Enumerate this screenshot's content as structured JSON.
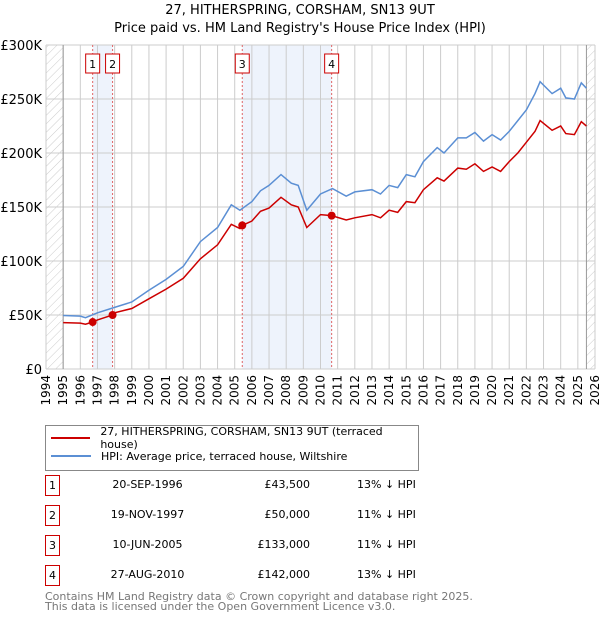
{
  "title": "27, HITHERSPRING, CORSHAM, SN13 9UT",
  "subtitle": "Price paid vs. HM Land Registry's House Price Index (HPI)",
  "legend": {
    "property": "27, HITHERSPRING, CORSHAM, SN13 9UT (terraced house)",
    "hpi": "HPI: Average price, terraced house, Wiltshire"
  },
  "sales": [
    {
      "n": "1",
      "date": "20-SEP-1996",
      "price": "£43,500",
      "hpi": "13% ↓ HPI"
    },
    {
      "n": "2",
      "date": "19-NOV-1997",
      "price": "£50,000",
      "hpi": "11% ↓ HPI"
    },
    {
      "n": "3",
      "date": "10-JUN-2005",
      "price": "£133,000",
      "hpi": "11% ↓ HPI"
    },
    {
      "n": "4",
      "date": "27-AUG-2010",
      "price": "£142,000",
      "hpi": "13% ↓ HPI"
    }
  ],
  "footer": [
    "Contains HM Land Registry data © Crown copyright and database right 2025.",
    "This data is licensed under the Open Government Licence v3.0."
  ],
  "chart_data": {
    "type": "line",
    "title": "27, HITHERSPRING, CORSHAM, SN13 9UT",
    "xlim": [
      1994,
      2026
    ],
    "ylim": [
      0,
      300000
    ],
    "yticks": [
      0,
      50000,
      100000,
      150000,
      200000,
      250000,
      300000
    ],
    "ytick_labels": [
      "£0",
      "£50K",
      "£100K",
      "£150K",
      "£200K",
      "£250K",
      "£300K"
    ],
    "xticks": [
      1994,
      1995,
      1996,
      1997,
      1998,
      1999,
      2000,
      2001,
      2002,
      2003,
      2004,
      2005,
      2006,
      2007,
      2008,
      2009,
      2010,
      2011,
      2012,
      2013,
      2014,
      2015,
      2016,
      2017,
      2018,
      2019,
      2020,
      2021,
      2022,
      2023,
      2024,
      2025,
      2026
    ],
    "colors": {
      "property": "#cc0000",
      "hpi": "#5b8fd4",
      "shade": "#eef3fc"
    },
    "series": [
      {
        "name": "HPI: Average price, terraced house, Wiltshire",
        "x": [
          1995,
          1996,
          1996.3,
          1997,
          1998,
          1999,
          2000,
          2001,
          2002,
          2003,
          2004,
          2004.8,
          2005.3,
          2006,
          2006.5,
          2007,
          2007.7,
          2008.3,
          2008.7,
          2009.2,
          2010,
          2010.7,
          2011.5,
          2012,
          2013,
          2013.5,
          2014,
          2014.5,
          2015,
          2015.5,
          2016,
          2016.8,
          2017.2,
          2018,
          2018.5,
          2019,
          2019.5,
          2020,
          2020.5,
          2021,
          2021.5,
          2022,
          2022.5,
          2022.8,
          2023.5,
          2024,
          2024.3,
          2024.8,
          2025.2,
          2025.5
        ],
        "values": [
          49500,
          49000,
          47500,
          52000,
          57000,
          62000,
          73000,
          83000,
          95000,
          118000,
          131000,
          152000,
          147000,
          155000,
          165000,
          170000,
          180000,
          172000,
          170000,
          147000,
          162000,
          167000,
          160000,
          164000,
          166000,
          162000,
          170000,
          168000,
          180000,
          178000,
          192000,
          205000,
          200000,
          214000,
          214000,
          219000,
          211000,
          217000,
          212000,
          220000,
          230000,
          240000,
          255000,
          266000,
          255000,
          260000,
          251000,
          250000,
          265000,
          260000
        ]
      },
      {
        "name": "27, HITHERSPRING, CORSHAM, SN13 9UT (terraced house)",
        "x": [
          1995,
          1996,
          1996.3,
          1996.72,
          1997,
          1997.88,
          1998,
          1999,
          2000,
          2001,
          2002,
          2003,
          2004,
          2004.8,
          2005.3,
          2005.44,
          2006,
          2006.5,
          2007,
          2007.7,
          2008.3,
          2008.7,
          2009.2,
          2010,
          2010.65,
          2011.5,
          2012,
          2013,
          2013.5,
          2014,
          2014.5,
          2015,
          2015.5,
          2016,
          2016.8,
          2017.2,
          2018,
          2018.5,
          2019,
          2019.5,
          2020,
          2020.5,
          2021,
          2021.5,
          2022,
          2022.5,
          2022.8,
          2023.5,
          2024,
          2024.3,
          2024.8,
          2025.2,
          2025.5
        ],
        "values": [
          43000,
          42500,
          41500,
          43500,
          45500,
          50000,
          52000,
          56000,
          65000,
          74000,
          84000,
          102000,
          115000,
          134000,
          130000,
          133000,
          137000,
          146000,
          149000,
          159000,
          152000,
          150000,
          131000,
          143000,
          142000,
          138000,
          140000,
          143000,
          140000,
          147000,
          145000,
          155000,
          154000,
          166000,
          177000,
          174000,
          186000,
          185000,
          190000,
          183000,
          187000,
          183000,
          192000,
          200000,
          210000,
          220000,
          230000,
          221000,
          225000,
          218000,
          217000,
          229000,
          225000
        ]
      }
    ],
    "sale_points": [
      {
        "n": "1",
        "x": 1996.72,
        "y": 43500
      },
      {
        "n": "2",
        "x": 1997.88,
        "y": 50000
      },
      {
        "n": "3",
        "x": 2005.44,
        "y": 133000
      },
      {
        "n": "4",
        "x": 2010.65,
        "y": 142000
      }
    ],
    "shaded_ranges": [
      [
        1996.72,
        1997.88
      ],
      [
        2005.44,
        2010.65
      ]
    ]
  }
}
